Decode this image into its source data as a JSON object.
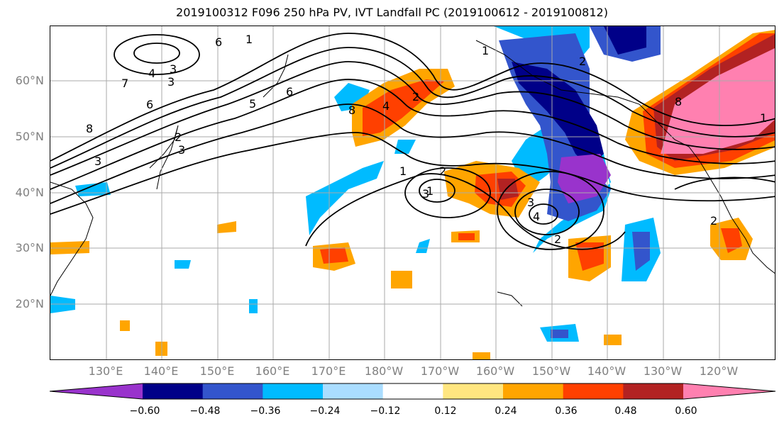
{
  "title": "2019100312 F096 250 hPa PV, IVT Landfall PC (2019100612 - 2019100812)",
  "lat_labels": [
    "60°N",
    "50°N",
    "40°N",
    "30°N",
    "20°N"
  ],
  "lon_labels": [
    "130°E",
    "140°E",
    "150°E",
    "160°E",
    "170°E",
    "180°W",
    "170°W",
    "160°W",
    "150°W",
    "140°W",
    "130°W",
    "120°W"
  ],
  "colorbar": {
    "tick_labels": [
      "−0.60",
      "−0.48",
      "−0.36",
      "−0.24",
      "−0.12",
      "0.12",
      "0.24",
      "0.36",
      "0.48",
      "0.60"
    ],
    "colors": [
      "#9933cc",
      "#000088",
      "#3355cc",
      "#00bbff",
      "#aaddff",
      "#ffffff",
      "#ffe680",
      "#ffa500",
      "#ff4000",
      "#b22222",
      "#ff80b0"
    ]
  },
  "contour_labels": [
    "1",
    "6",
    "3",
    "4",
    "3",
    "7",
    "6",
    "5",
    "8",
    "3",
    "2",
    "3",
    "6",
    "8",
    "4",
    "2",
    "1",
    "2",
    "3",
    "1",
    "3",
    "2",
    "4",
    "2",
    "1",
    "8",
    "1",
    "2"
  ]
}
